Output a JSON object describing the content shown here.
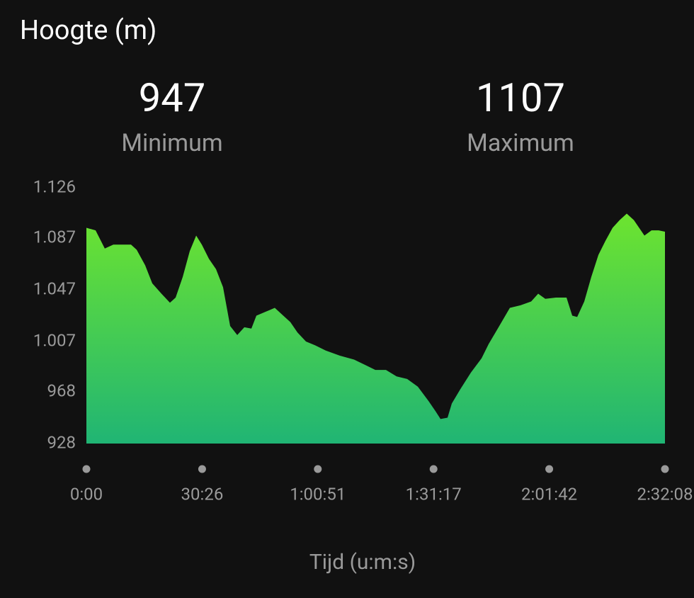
{
  "chart_data": {
    "type": "area",
    "title": "Hoogte (m)",
    "stats": [
      {
        "value": 947,
        "label": "Minimum"
      },
      {
        "value": 1107,
        "label": "Maximum"
      }
    ],
    "x_label": "Tijd (u:m:s)",
    "gradient": [
      "#6de42f",
      "#20b574"
    ],
    "x": [
      0,
      145,
      290,
      425,
      536,
      704,
      793,
      927,
      1039,
      1184,
      1318,
      1408,
      1520,
      1631,
      1732,
      1821,
      1933,
      2045,
      2156,
      2268,
      2380,
      2492,
      2603,
      2682,
      2827,
      2972,
      3106,
      3218,
      3330,
      3464,
      3609,
      3776,
      4000,
      4223,
      4391,
      4559,
      4726,
      4894,
      5061,
      5229,
      5397,
      5508,
      5587,
      5698,
      5765,
      5899,
      6067,
      6235,
      6346,
      6514,
      6681,
      6849,
      7017,
      7128,
      7240,
      7408,
      7575,
      7665,
      7743,
      7855,
      7966,
      8078,
      8190,
      8302,
      8413,
      8525,
      8637,
      8748,
      8804,
      8916,
      9028,
      9128
    ],
    "values": [
      1095,
      1093,
      1079,
      1082,
      1082,
      1082,
      1078,
      1066,
      1052,
      1044,
      1037,
      1041,
      1057,
      1077,
      1089,
      1082,
      1071,
      1063,
      1049,
      1019,
      1012,
      1018,
      1017,
      1027,
      1030,
      1033,
      1027,
      1022,
      1014,
      1007,
      1004,
      1000,
      996,
      993,
      989,
      985,
      985,
      980,
      978,
      972,
      961,
      953,
      947,
      948,
      959,
      970,
      983,
      994,
      1005,
      1019,
      1033,
      1035,
      1038,
      1044,
      1040,
      1041,
      1041,
      1027,
      1026,
      1038,
      1057,
      1074,
      1085,
      1095,
      1101,
      1106,
      1101,
      1093,
      1089,
      1093,
      1093,
      1092
    ],
    "xlim": [
      0,
      9128
    ],
    "xticks": [
      {
        "value": 0,
        "label": "0:00"
      },
      {
        "value": 1826,
        "label": "30:26"
      },
      {
        "value": 3651,
        "label": "1:00:51"
      },
      {
        "value": 5477,
        "label": "1:31:17"
      },
      {
        "value": 7302,
        "label": "2:01:42"
      },
      {
        "value": 9128,
        "label": "2:32:08"
      }
    ],
    "ylim": [
      928,
      1126
    ],
    "yticks": [
      928,
      968,
      {
        "value": 1007,
        "label": "1.007"
      },
      {
        "value": 1047,
        "label": "1.047"
      },
      {
        "value": 1087,
        "label": "1.087"
      },
      {
        "value": 1126,
        "label": "1.126"
      }
    ]
  }
}
